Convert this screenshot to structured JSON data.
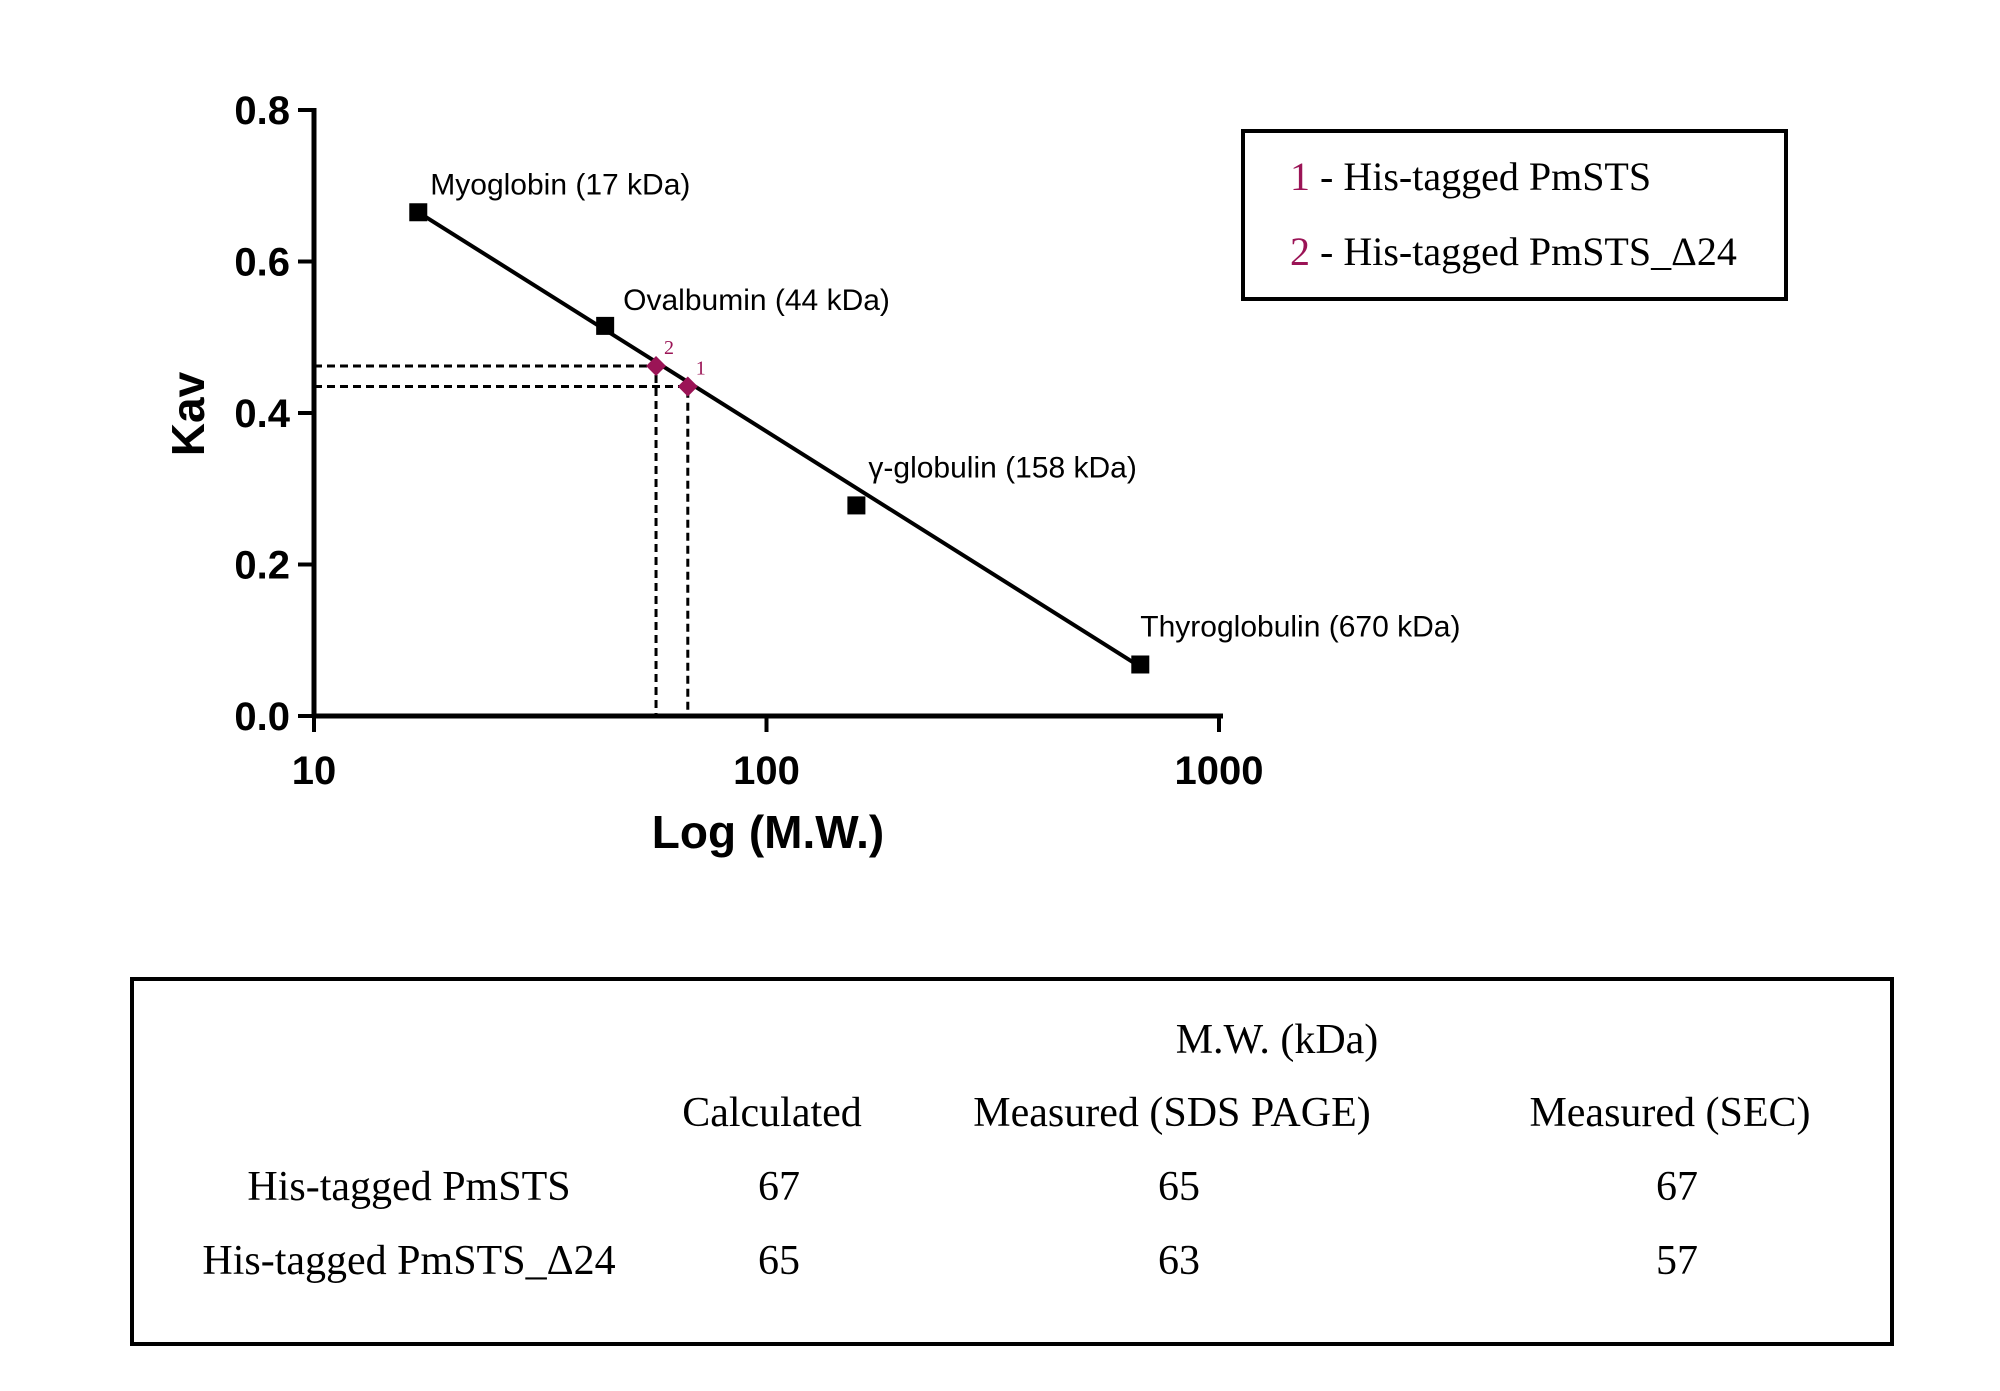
{
  "chart_data": {
    "type": "scatter",
    "xlabel": "Log (M.W.)",
    "ylabel": "Kav",
    "x_scale": "log",
    "xlim": [
      10,
      1000
    ],
    "ylim": [
      0.0,
      0.8
    ],
    "x_ticks": [
      "10",
      "100",
      "1000"
    ],
    "y_ticks": [
      "0.0",
      "0.2",
      "0.4",
      "0.6",
      "0.8"
    ],
    "x_tick_values": [
      10,
      100,
      1000
    ],
    "y_tick_values": [
      0.0,
      0.2,
      0.4,
      0.6,
      0.8
    ],
    "fit_line": {
      "x": [
        17,
        670
      ],
      "y": [
        0.665,
        0.065
      ]
    },
    "series": [
      {
        "marker": "square",
        "color": "#000000",
        "points": [
          {
            "x": 17,
            "y": 0.665,
            "label": "Myoglobin (17 kDa)"
          },
          {
            "x": 44,
            "y": 0.515,
            "label": "Ovalbumin (44 kDa)"
          },
          {
            "x": 158,
            "y": 0.278,
            "label": "γ-globulin (158 kDa)"
          },
          {
            "x": 670,
            "y": 0.068,
            "label": "Thyroglobulin (670 kDa)"
          }
        ]
      },
      {
        "marker": "diamond",
        "color": "#9b1456",
        "points": [
          {
            "x": 57,
            "y": 0.462,
            "label": "2"
          },
          {
            "x": 67,
            "y": 0.435,
            "label": "1"
          }
        ]
      }
    ],
    "legend": {
      "position": "top-right",
      "items": [
        {
          "num": "1",
          "text": " - His-tagged PmSTS"
        },
        {
          "num": "2",
          "text": " - His-tagged PmSTS_Δ24"
        }
      ]
    }
  },
  "table": {
    "group_header": "M.W. (kDa)",
    "columns": [
      "Calculated",
      "Measured (SDS PAGE)",
      "Measured (SEC)"
    ],
    "rows": [
      {
        "name": "His-tagged PmSTS",
        "values": [
          "67",
          "65",
          "67"
        ]
      },
      {
        "name": "His-tagged PmSTS_Δ24",
        "values": [
          "65",
          "63",
          "57"
        ]
      }
    ]
  },
  "colors": {
    "accent": "#9b1456",
    "ink": "#000000"
  }
}
